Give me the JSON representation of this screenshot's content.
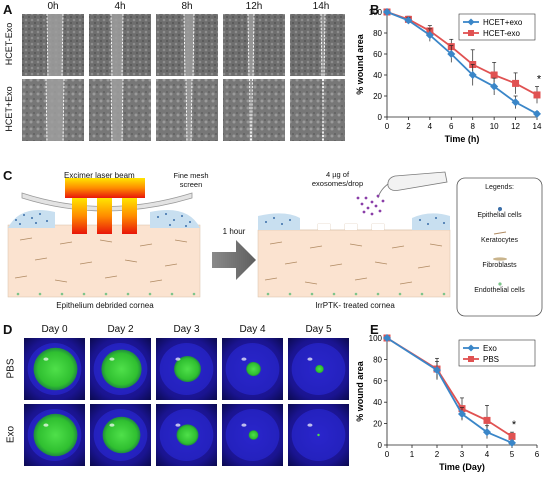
{
  "panel_a": {
    "letter": "A",
    "time_labels": [
      "0h",
      "4h",
      "8h",
      "12h",
      "14h"
    ],
    "row_labels": [
      "HCET-Exo",
      "HCET+Exo"
    ]
  },
  "panel_d": {
    "letter": "D",
    "day_labels": [
      "Day 0",
      "Day 2",
      "Day 3",
      "Day 4",
      "Day 5"
    ],
    "row_labels": [
      "PBS",
      "Exo"
    ]
  },
  "panel_c": {
    "letter": "C",
    "laser_label": "Excimer laser beam",
    "screen_label": "Fine mesh screen",
    "exosome_label": "4 µg of exosomes/drop",
    "arrow_label": "1 hour",
    "left_caption": "Epithelium debrided cornea",
    "right_caption": "IrrPTK- treated cornea",
    "legend_title": "Legends:",
    "legend_items": [
      "Epithelial cells",
      "Keratocytes",
      "Fibroblasts",
      "Endothelial cells"
    ]
  },
  "chart_data": [
    {
      "panel": "B",
      "type": "line",
      "xlabel": "Time (h)",
      "ylabel": "% wound area",
      "x": [
        0,
        2,
        4,
        6,
        8,
        10,
        12,
        14
      ],
      "xlim": [
        0,
        14
      ],
      "ylim": [
        0,
        100
      ],
      "xticks": [
        0,
        2,
        4,
        6,
        8,
        10,
        12,
        14
      ],
      "yticks": [
        0,
        20,
        40,
        60,
        80,
        100
      ],
      "legend_position": "top-right",
      "annotation": "*",
      "series": [
        {
          "name": "HCET+exo",
          "color": "#3a86c8",
          "marker": "diamond",
          "values": [
            100,
            92,
            78,
            60,
            40,
            29,
            14,
            3
          ],
          "errors": [
            2,
            3,
            6,
            8,
            10,
            8,
            6,
            2
          ]
        },
        {
          "name": "HCET-exo",
          "color": "#e05252",
          "marker": "square",
          "values": [
            100,
            93,
            82,
            67,
            50,
            40,
            32,
            21
          ],
          "errors": [
            2,
            3,
            5,
            7,
            14,
            12,
            10,
            8
          ]
        }
      ]
    },
    {
      "panel": "E",
      "type": "line",
      "xlabel": "Time (Day)",
      "ylabel": "% wound area",
      "x": [
        0,
        2,
        3,
        4,
        5
      ],
      "xlim": [
        0,
        6
      ],
      "ylim": [
        0,
        100
      ],
      "xticks": [
        0,
        1,
        2,
        3,
        4,
        5,
        6
      ],
      "yticks": [
        0,
        20,
        40,
        60,
        80,
        100
      ],
      "legend_position": "top-right",
      "annotation": "*",
      "series": [
        {
          "name": "Exo",
          "color": "#3a86c8",
          "marker": "diamond",
          "values": [
            100,
            70,
            29,
            12,
            2
          ],
          "errors": [
            1,
            8,
            6,
            6,
            2
          ]
        },
        {
          "name": "PBS",
          "color": "#e05252",
          "marker": "square",
          "values": [
            100,
            71,
            34,
            23,
            8
          ],
          "errors": [
            1,
            10,
            10,
            14,
            4
          ]
        }
      ]
    }
  ]
}
